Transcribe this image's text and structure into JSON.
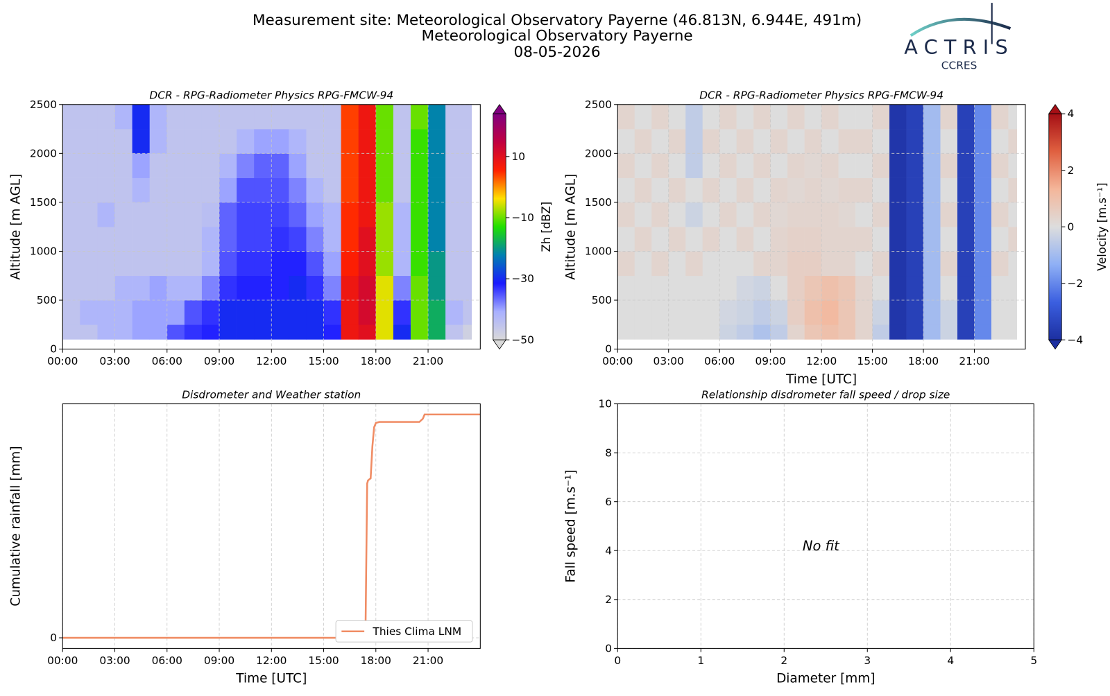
{
  "header": {
    "lines": [
      "Measurement site: Meteorological Observatory Payerne (46.813N, 6.944E, 491m)",
      "Meteorological Observatory Payerne",
      "08-05-2026"
    ]
  },
  "logo": {
    "name": "ACTRIS",
    "sub": "CCRES"
  },
  "chart_data": [
    {
      "type": "heatmap",
      "title": "DCR - RPG-Radiometer Physics RPG-FMCW-94",
      "ylabel": "Altitude [m AGL]",
      "xlim": [
        0,
        24
      ],
      "xticks": [
        {
          "value": 0,
          "label": "00:00"
        },
        {
          "value": 3,
          "label": "03:00"
        },
        {
          "value": 6,
          "label": "06:00"
        },
        {
          "value": 9,
          "label": "09:00"
        },
        {
          "value": 12,
          "label": "12:00"
        },
        {
          "value": 15,
          "label": "15:00"
        },
        {
          "value": 18,
          "label": "18:00"
        },
        {
          "value": 21,
          "label": "21:00"
        }
      ],
      "ylim": [
        0,
        2500
      ],
      "yticks": [
        0,
        500,
        1000,
        1500,
        2000,
        2500
      ],
      "grid": true,
      "x_bins": [
        0,
        1,
        2,
        3,
        4,
        5,
        6,
        7,
        8,
        9,
        10,
        11,
        12,
        13,
        14,
        15,
        16,
        17,
        18,
        19,
        20,
        21,
        22,
        23,
        23.5
      ],
      "y_bins": [
        100,
        250,
        500,
        750,
        1000,
        1250,
        1500,
        1750,
        2000,
        2250,
        2500
      ],
      "z": [
        [
          -45,
          -45,
          -42,
          -42,
          -40,
          -40,
          -35,
          -33,
          -32,
          -30,
          -30,
          -30,
          -30,
          -30,
          -30,
          -32,
          8,
          10,
          -5,
          -30,
          -10,
          -18,
          -45,
          -48
        ],
        [
          -45,
          -42,
          -42,
          -42,
          -40,
          -40,
          -40,
          -35,
          -33,
          -30,
          -30,
          -30,
          -30,
          -30,
          -30,
          -33,
          8,
          12,
          -5,
          -33,
          -10,
          -18,
          -42,
          -45
        ],
        [
          -45,
          -45,
          -45,
          -42,
          -42,
          -40,
          -42,
          -42,
          -38,
          -33,
          -32,
          -32,
          -32,
          -30,
          -33,
          -38,
          8,
          12,
          -5,
          -38,
          -10,
          -20,
          -45,
          -45
        ],
        [
          -45,
          -45,
          -45,
          -45,
          -45,
          -45,
          -45,
          -45,
          -42,
          -35,
          -33,
          -33,
          -32,
          -32,
          -35,
          -40,
          6,
          10,
          -8,
          -42,
          -12,
          -20,
          -45,
          -45
        ],
        [
          -45,
          -45,
          -45,
          -45,
          -45,
          -45,
          -45,
          -45,
          -42,
          -36,
          -34,
          -34,
          -33,
          -34,
          -38,
          -42,
          5,
          10,
          -8,
          -42,
          -12,
          -22,
          -45,
          -45
        ],
        [
          -45,
          -45,
          -42,
          -45,
          -45,
          -45,
          -45,
          -45,
          -44,
          -36,
          -34,
          -34,
          -34,
          -36,
          -40,
          -42,
          5,
          8,
          -8,
          -42,
          -12,
          -22,
          -45,
          -45
        ],
        [
          -45,
          -45,
          -45,
          -45,
          -42,
          -45,
          -45,
          -45,
          -45,
          -40,
          -35,
          -35,
          -35,
          -38,
          -42,
          -45,
          4,
          8,
          -10,
          -45,
          -12,
          -22,
          -45,
          -45
        ],
        [
          -45,
          -45,
          -45,
          -45,
          -40,
          -45,
          -45,
          -45,
          -45,
          -42,
          -38,
          -36,
          -36,
          -40,
          -45,
          -45,
          4,
          8,
          -10,
          -45,
          -12,
          -22,
          -45,
          -45
        ],
        [
          -45,
          -45,
          -45,
          -45,
          -30,
          -42,
          -45,
          -45,
          -45,
          -45,
          -42,
          -40,
          -40,
          -42,
          -45,
          -45,
          4,
          8,
          -10,
          -45,
          -12,
          -22,
          -45,
          -45
        ],
        [
          -45,
          -45,
          -45,
          -42,
          -30,
          -42,
          -45,
          -45,
          -45,
          -45,
          -45,
          -45,
          -45,
          -45,
          -45,
          -45,
          4,
          8,
          -10,
          -45,
          -10,
          -22,
          -45,
          -45
        ]
      ],
      "zlim": [
        -50,
        24
      ],
      "zticks": [
        {
          "value": -50,
          "label": "−50"
        },
        {
          "value": -30,
          "label": "−30"
        },
        {
          "value": -10,
          "label": "−10"
        },
        10
      ],
      "zlabel": "Zh [dBZ]",
      "colorscale": [
        "#d9d9d9",
        "#a8b0ff",
        "#1a1aff",
        "#0080b0",
        "#20e000",
        "#ffe000",
        "#ff2000",
        "#c00040",
        "#800080"
      ]
    },
    {
      "type": "heatmap",
      "title": "DCR - RPG-Radiometer Physics RPG-FMCW-94",
      "ylabel": "Altitude [m AGL]",
      "xlabel": "Time [UTC]",
      "xlim": [
        0,
        24
      ],
      "xticks": [
        {
          "value": 0,
          "label": "00:00"
        },
        {
          "value": 3,
          "label": "03:00"
        },
        {
          "value": 6,
          "label": "06:00"
        },
        {
          "value": 9,
          "label": "09:00"
        },
        {
          "value": 12,
          "label": "12:00"
        },
        {
          "value": 15,
          "label": "15:00"
        },
        {
          "value": 18,
          "label": "18:00"
        },
        {
          "value": 21,
          "label": "21:00"
        }
      ],
      "ylim": [
        0,
        2500
      ],
      "yticks": [
        0,
        500,
        1000,
        1500,
        2000,
        2500
      ],
      "grid": true,
      "x_bins": [
        0,
        1,
        2,
        3,
        4,
        5,
        6,
        7,
        8,
        9,
        10,
        11,
        12,
        13,
        14,
        15,
        16,
        17,
        18,
        19,
        20,
        21,
        22,
        23,
        23.5
      ],
      "y_bins": [
        100,
        250,
        500,
        750,
        1000,
        1250,
        1500,
        1750,
        2000,
        2250,
        2500
      ],
      "z": [
        [
          0,
          0,
          0,
          0,
          0,
          0,
          -0.3,
          -0.5,
          -0.8,
          -0.5,
          0.3,
          0.8,
          1,
          0.8,
          0.3,
          -0.5,
          -3.8,
          -3.5,
          -1,
          -0.3,
          -3.5,
          -2,
          0,
          0
        ],
        [
          0,
          0,
          0,
          0,
          0,
          0,
          -0.2,
          -0.3,
          -0.5,
          -0.3,
          0.5,
          1,
          1.2,
          0.8,
          0.3,
          -0.3,
          -3.8,
          -3.5,
          -1,
          -0.3,
          -3.5,
          -2,
          0,
          0
        ],
        [
          0,
          0,
          0,
          0,
          0,
          0,
          0,
          -0.2,
          -0.3,
          0,
          0.5,
          0.8,
          1,
          0.8,
          0.3,
          0,
          -3.8,
          -3.5,
          -1,
          0,
          -3.5,
          -2,
          0,
          0
        ],
        [
          0.3,
          0,
          0.3,
          0,
          0.3,
          0,
          0,
          0,
          0.3,
          0.3,
          0.5,
          0.5,
          0.3,
          0.3,
          0,
          0.3,
          -3.8,
          -3.5,
          -1,
          0.3,
          -3.5,
          -2,
          0.3,
          0
        ],
        [
          0,
          0.3,
          0,
          0.3,
          0,
          0.3,
          0,
          0.3,
          0,
          0.3,
          0.4,
          0.4,
          0.3,
          0.3,
          0.3,
          0,
          -3.8,
          -3.5,
          -1,
          0,
          -3.5,
          -2,
          0,
          0.3
        ],
        [
          0.3,
          0,
          0.3,
          0,
          -0.3,
          0,
          0.3,
          0,
          0.3,
          0.2,
          0.3,
          0.3,
          0.3,
          0.2,
          0,
          0.3,
          -3.8,
          -3.5,
          -1,
          0.3,
          -3.5,
          -2,
          0.3,
          0
        ],
        [
          0,
          0.3,
          0,
          0.3,
          0,
          0.3,
          0,
          0.3,
          0,
          0.3,
          0.2,
          0.3,
          0.2,
          0.3,
          0.3,
          0,
          -3.8,
          -3.5,
          -1,
          0,
          -3.5,
          -2,
          0,
          0.3
        ],
        [
          0.3,
          0,
          0.3,
          0,
          -0.5,
          0,
          0.3,
          0,
          0.3,
          0,
          0.3,
          0.2,
          0.3,
          0,
          0,
          0.3,
          -3.8,
          -3.5,
          -1,
          0.3,
          -3.5,
          -2,
          0.3,
          0
        ],
        [
          0,
          0.3,
          0,
          0.3,
          -0.5,
          0.3,
          0,
          0.3,
          0,
          0.3,
          0,
          0.3,
          0,
          0.3,
          0.3,
          0,
          -3.8,
          -3.5,
          -1,
          0,
          -3.5,
          -2,
          0,
          0.3
        ],
        [
          0.3,
          0,
          0.3,
          0,
          -0.5,
          0,
          0.3,
          0,
          0.3,
          0,
          0.3,
          0,
          0.3,
          0,
          0,
          0.3,
          -3.8,
          -3.5,
          -1,
          0.3,
          -3.5,
          -2,
          0.3,
          0
        ]
      ],
      "zlim": [
        -4,
        4
      ],
      "zticks": [
        {
          "value": -4,
          "label": "−4"
        },
        {
          "value": -2,
          "label": "−2"
        },
        0,
        2,
        4
      ],
      "zlabel": "Velocity [m.s⁻¹]",
      "colorscale": [
        "#1c2fa0",
        "#3b5fe0",
        "#8fb0f5",
        "#dddddd",
        "#f4b69a",
        "#e06040",
        "#a50f15"
      ]
    },
    {
      "type": "line",
      "title": "Disdrometer and Weather station",
      "ylabel": "Cumulative rainfall [mm]",
      "xlabel": "Time [UTC]",
      "xlim": [
        0,
        24
      ],
      "xticks": [
        {
          "value": 0,
          "label": "00:00"
        },
        {
          "value": 3,
          "label": "03:00"
        },
        {
          "value": 6,
          "label": "06:00"
        },
        {
          "value": 9,
          "label": "09:00"
        },
        {
          "value": 12,
          "label": "12:00"
        },
        {
          "value": 15,
          "label": "15:00"
        },
        {
          "value": 18,
          "label": "18:00"
        },
        {
          "value": 21,
          "label": "21:00"
        }
      ],
      "ylim": [
        -1,
        22
      ],
      "yticks": [
        0
      ],
      "grid": true,
      "legend": "lower right",
      "series": [
        {
          "name": "Thies Clima LNM",
          "color": "#f08c64",
          "x": [
            0,
            17.4,
            17.5,
            17.55,
            17.7,
            17.8,
            17.9,
            18.0,
            18.2,
            20.5,
            20.7,
            20.8,
            24
          ],
          "values": [
            0,
            0,
            14.5,
            14.8,
            15,
            18,
            19.8,
            20.2,
            20.3,
            20.3,
            20.6,
            21,
            21
          ]
        }
      ]
    },
    {
      "type": "scatter",
      "title": "Relationship disdrometer fall speed / drop size",
      "ylabel": "Fall speed [m.s⁻¹]",
      "xlabel": "Diameter [mm]",
      "xlim": [
        0,
        5
      ],
      "xticks": [
        0,
        1,
        2,
        3,
        4,
        5
      ],
      "ylim": [
        0,
        10
      ],
      "yticks": [
        0,
        2,
        4,
        6,
        8,
        10
      ],
      "grid": true,
      "annotation": "No fit"
    }
  ]
}
